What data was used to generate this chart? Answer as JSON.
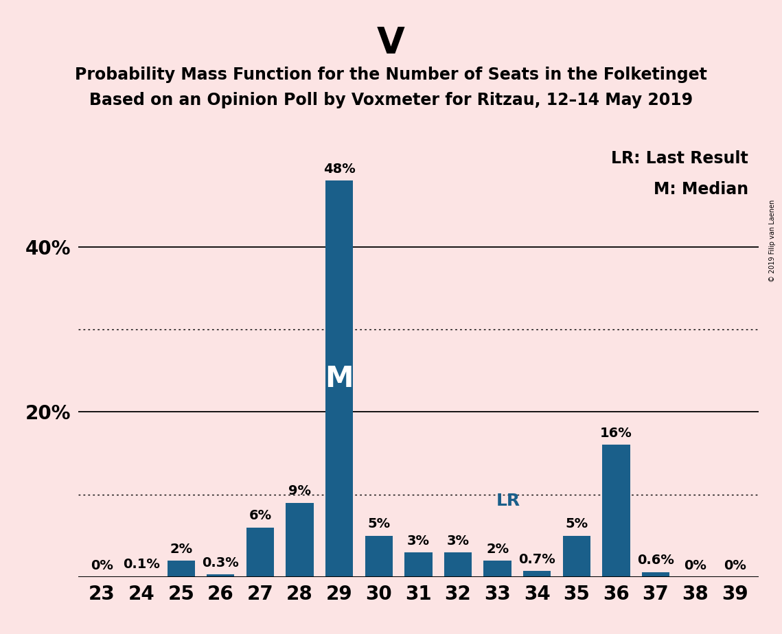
{
  "title": "V",
  "subtitle1": "Probability Mass Function for the Number of Seats in the Folketinget",
  "subtitle2": "Based on an Opinion Poll by Voxmeter for Ritzau, 12–14 May 2019",
  "categories": [
    23,
    24,
    25,
    26,
    27,
    28,
    29,
    30,
    31,
    32,
    33,
    34,
    35,
    36,
    37,
    38,
    39
  ],
  "values": [
    0.0,
    0.1,
    2.0,
    0.3,
    6.0,
    9.0,
    48.0,
    5.0,
    3.0,
    3.0,
    2.0,
    0.7,
    5.0,
    16.0,
    0.6,
    0.0,
    0.0
  ],
  "labels": [
    "0%",
    "0.1%",
    "2%",
    "0.3%",
    "6%",
    "9%",
    "48%",
    "5%",
    "3%",
    "3%",
    "2%",
    "0.7%",
    "5%",
    "16%",
    "0.6%",
    "0%",
    "0%"
  ],
  "bar_color": "#1a5f8a",
  "background_color": "#fce4e4",
  "median_bar": 29,
  "lr_bar": 34,
  "solid_gridlines": [
    20,
    40
  ],
  "dotted_gridlines": [
    10,
    30
  ],
  "legend_text1": "LR: Last Result",
  "legend_text2": "M: Median",
  "watermark": "© 2019 Filip van Laenen",
  "title_fontsize": 38,
  "subtitle_fontsize": 17,
  "axis_fontsize": 20,
  "label_fontsize": 14,
  "legend_fontsize": 17,
  "m_fontsize": 30,
  "lr_fontsize": 18
}
